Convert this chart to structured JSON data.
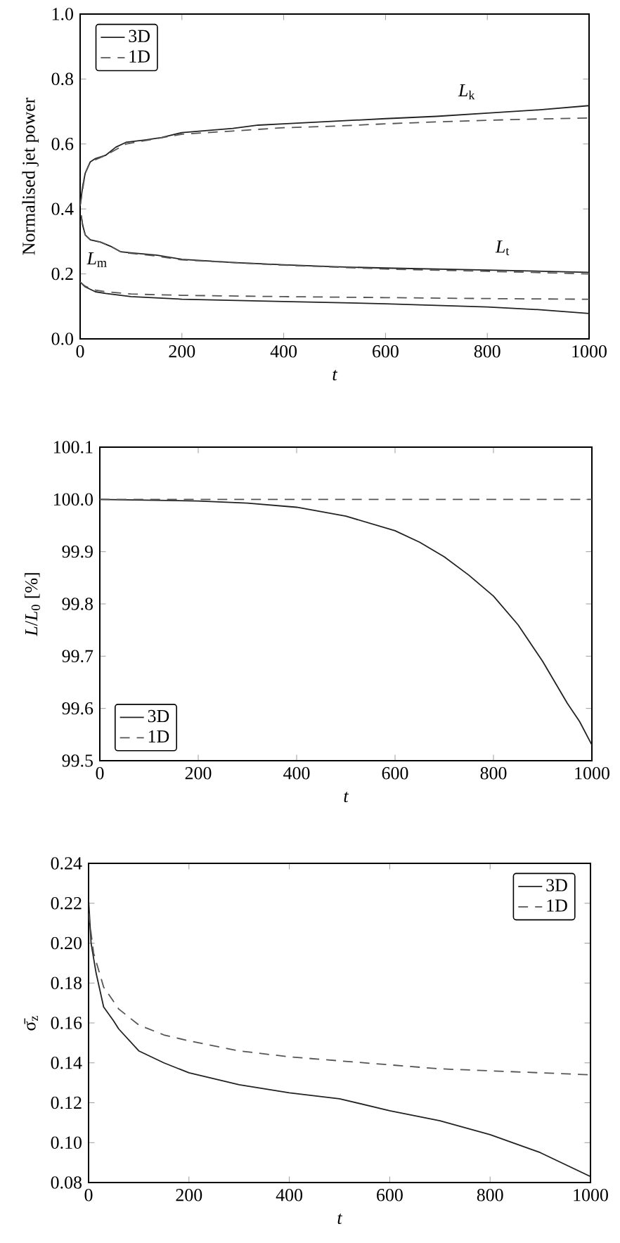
{
  "chart_data": [
    {
      "type": "line",
      "ylabel": "Normalised jet power",
      "xlabel": "t",
      "legend": "top left",
      "xlim": [
        0,
        1000
      ],
      "ylim": [
        0,
        1
      ],
      "xticks": [
        0,
        200,
        400,
        600,
        800,
        1000
      ],
      "yticks": [
        {
          "value": 0,
          "label": "0.0"
        },
        {
          "value": 0.2,
          "label": "0.2"
        },
        {
          "value": 0.4,
          "label": "0.4"
        },
        {
          "value": 0.6,
          "label": "0.6"
        },
        {
          "value": 0.8,
          "label": "0.8"
        },
        {
          "value": 1,
          "label": "1.0"
        }
      ],
      "annotations": [
        "*L*$_{k}$",
        "*L*$_{t}$",
        "*L*$_{m}$"
      ],
      "series": [
        {
          "name": "3D",
          "color": "#222222",
          "line_style": "solid",
          "x": [
            0,
            5,
            10,
            20,
            30,
            50,
            70,
            90,
            130,
            160,
            200,
            300,
            350,
            400,
            500,
            600,
            700,
            800,
            900,
            1000
          ],
          "values": [
            0.41,
            0.47,
            0.51,
            0.545,
            0.555,
            0.565,
            0.59,
            0.605,
            0.613,
            0.62,
            0.635,
            0.648,
            0.658,
            0.662,
            0.67,
            0.678,
            0.685,
            0.695,
            0.705,
            0.718
          ]
        },
        {
          "name": "1D",
          "color": "#555555",
          "line_style": "dashed",
          "x": [
            0,
            10,
            20,
            50,
            90,
            200,
            300,
            400,
            500,
            600,
            700,
            800,
            900,
            1000
          ],
          "values": [
            0.41,
            0.51,
            0.545,
            0.565,
            0.6,
            0.63,
            0.64,
            0.65,
            0.655,
            0.662,
            0.668,
            0.673,
            0.677,
            0.68
          ]
        },
        {
          "color": "#222222",
          "line_style": "solid",
          "x": [
            2,
            5,
            10,
            20,
            40,
            60,
            80,
            100,
            150,
            200,
            300,
            400,
            500,
            600,
            800,
            1000
          ],
          "values": [
            0.38,
            0.35,
            0.32,
            0.305,
            0.298,
            0.285,
            0.268,
            0.265,
            0.258,
            0.245,
            0.235,
            0.228,
            0.222,
            0.218,
            0.212,
            0.205
          ]
        },
        {
          "color": "#555555",
          "line_style": "dashed",
          "x": [
            2,
            5,
            10,
            20,
            40,
            60,
            80,
            100,
            150,
            200,
            400,
            600,
            800,
            1000
          ],
          "values": [
            0.38,
            0.35,
            0.32,
            0.305,
            0.298,
            0.285,
            0.268,
            0.263,
            0.255,
            0.243,
            0.227,
            0.215,
            0.208,
            0.2
          ]
        },
        {
          "color": "#222222",
          "line_style": "solid",
          "x": [
            0,
            10,
            30,
            50,
            100,
            200,
            400,
            600,
            800,
            900,
            1000
          ],
          "values": [
            0.175,
            0.16,
            0.145,
            0.14,
            0.13,
            0.122,
            0.115,
            0.108,
            0.098,
            0.09,
            0.078
          ]
        },
        {
          "color": "#555555",
          "line_style": "dashed",
          "x": [
            0,
            10,
            30,
            50,
            100,
            200,
            400,
            600,
            800,
            1000
          ],
          "values": [
            0.175,
            0.162,
            0.15,
            0.145,
            0.138,
            0.134,
            0.13,
            0.127,
            0.124,
            0.122
          ]
        }
      ]
    },
    {
      "type": "line",
      "ylabel": "*L*/*L*$_{0}$ [%]",
      "xlabel": "t",
      "legend": "bottom left",
      "xlim": [
        0,
        1000
      ],
      "ylim": [
        99.5,
        100.1
      ],
      "xticks": [
        0,
        200,
        400,
        600,
        800,
        1000
      ],
      "yticks": [
        99.5,
        99.6,
        99.7,
        99.8,
        99.9,
        {
          "value": 100,
          "label": "100.0"
        },
        100.1
      ],
      "series": [
        {
          "name": "3D",
          "color": "#222222",
          "line_style": "solid",
          "x": [
            0,
            200,
            300,
            400,
            500,
            600,
            650,
            700,
            750,
            800,
            850,
            900,
            925,
            950,
            975,
            1000
          ],
          "values": [
            100.0,
            99.997,
            99.993,
            99.985,
            99.968,
            99.94,
            99.918,
            99.89,
            99.855,
            99.815,
            99.76,
            99.69,
            99.65,
            99.61,
            99.575,
            99.53
          ]
        },
        {
          "name": "1D",
          "color": "#555555",
          "line_style": "dashed",
          "x": [
            0,
            1000
          ],
          "values": [
            100.0,
            100.0
          ]
        }
      ]
    },
    {
      "type": "line",
      "ylabel": "σ̄$_{z}$",
      "xlabel": "t",
      "legend": "top right",
      "xlim": [
        0,
        1000
      ],
      "ylim": [
        0.08,
        0.24
      ],
      "xticks": [
        0,
        200,
        400,
        600,
        800,
        1000
      ],
      "yticks": [
        0.08,
        {
          "value": 0.1,
          "label": "0.10"
        },
        0.12,
        0.14,
        0.16,
        0.18,
        {
          "value": 0.2,
          "label": "0.20"
        },
        0.22,
        0.24
      ],
      "series": [
        {
          "name": "3D",
          "color": "#222222",
          "line_style": "solid",
          "x": [
            0,
            5,
            15,
            30,
            50,
            60,
            100,
            150,
            200,
            300,
            400,
            500,
            600,
            700,
            800,
            900,
            1000
          ],
          "values": [
            0.222,
            0.2,
            0.185,
            0.168,
            0.161,
            0.157,
            0.146,
            0.14,
            0.135,
            0.129,
            0.125,
            0.122,
            0.116,
            0.111,
            0.104,
            0.095,
            0.083
          ]
        },
        {
          "name": "1D",
          "color": "#555555",
          "line_style": "dashed",
          "x": [
            0,
            10,
            30,
            60,
            100,
            150,
            200,
            300,
            400,
            500,
            600,
            700,
            800,
            900,
            1000
          ],
          "values": [
            0.215,
            0.195,
            0.178,
            0.167,
            0.159,
            0.154,
            0.151,
            0.146,
            0.143,
            0.141,
            0.139,
            0.137,
            0.136,
            0.135,
            0.134
          ]
        }
      ]
    }
  ]
}
